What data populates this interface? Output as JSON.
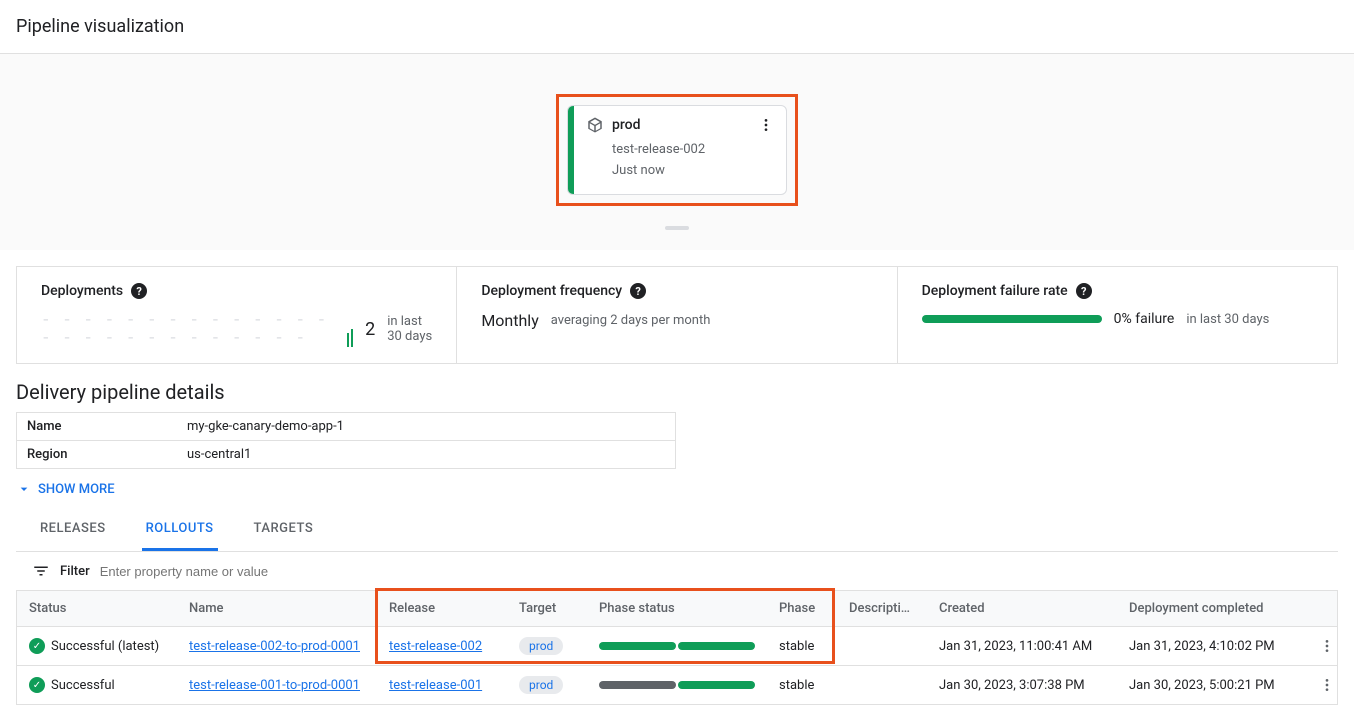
{
  "page_title": "Pipeline visualization",
  "stage": {
    "name": "prod",
    "release": "test-release-002",
    "time": "Just now"
  },
  "metrics": {
    "deployments": {
      "title": "Deployments",
      "value": "2",
      "suffix": "in last 30 days"
    },
    "frequency": {
      "title": "Deployment frequency",
      "value": "Monthly",
      "suffix": "averaging 2 days per month"
    },
    "failure": {
      "title": "Deployment failure rate",
      "value": "0% failure",
      "suffix": "in last 30 days",
      "bar_color": "#0f9d58"
    }
  },
  "details": {
    "title": "Delivery pipeline details",
    "rows": [
      {
        "key": "Name",
        "val": "my-gke-canary-demo-app-1"
      },
      {
        "key": "Region",
        "val": "us-central1"
      }
    ],
    "show_more": "SHOW MORE"
  },
  "tabs": [
    "RELEASES",
    "ROLLOUTS",
    "TARGETS"
  ],
  "active_tab": 1,
  "filter": {
    "label": "Filter",
    "placeholder": "Enter property name or value"
  },
  "grid": {
    "columns": [
      "Status",
      "Name",
      "Release",
      "Target",
      "Phase status",
      "Phase",
      "Description",
      "Created",
      "Deployment completed",
      ""
    ],
    "rows": [
      {
        "status": "Successful (latest)",
        "name": "test-release-002-to-prod-0001",
        "release": "test-release-002",
        "target": "prod",
        "phase_segments": [
          "#0f9d58",
          "#0f9d58"
        ],
        "phase": "stable",
        "description": "",
        "created": "Jan 31, 2023, 11:00:41 AM",
        "completed": "Jan 31, 2023, 4:10:02 PM",
        "highlight": true
      },
      {
        "status": "Successful",
        "name": "test-release-001-to-prod-0001",
        "release": "test-release-001",
        "target": "prod",
        "phase_segments": [
          "#5f6368",
          "#0f9d58"
        ],
        "phase": "stable",
        "description": "",
        "created": "Jan 30, 2023, 3:07:38 PM",
        "completed": "Jan 30, 2023, 5:00:21 PM",
        "highlight": false
      }
    ]
  },
  "colors": {
    "highlight": "#e8501c",
    "success": "#0f9d58",
    "link": "#1a73e8"
  }
}
